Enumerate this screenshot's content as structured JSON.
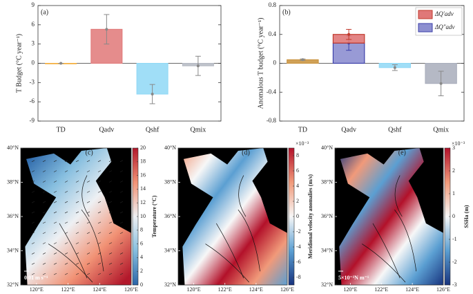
{
  "chart_data": [
    {
      "type": "bar",
      "panel": "(a)",
      "ylabel": "T Budget (°C year⁻¹)",
      "categories": [
        "TD",
        "Qadv",
        "Qshf",
        "Qmix"
      ],
      "values": [
        0,
        5.3,
        -4.8,
        -0.4
      ],
      "errors": [
        0,
        2.3,
        1.5,
        1.5
      ],
      "colors": [
        "#f5b041",
        "#e07878",
        "#8fd8f6",
        "#b4b8c2"
      ],
      "ylim": [
        -9,
        9
      ],
      "yticks": [
        -9,
        -6,
        -3,
        0,
        3,
        6,
        9
      ]
    },
    {
      "type": "bar",
      "panel": "(b)",
      "ylabel": "Anomalous T budget (°C year⁻¹)",
      "categories": [
        "TD",
        "Qadv",
        "Qshf",
        "Qmix"
      ],
      "values": [
        0.05,
        null,
        -0.06,
        -0.28
      ],
      "errors": [
        0.01,
        null,
        0.04,
        0.17
      ],
      "colors": [
        "#c8913a",
        null,
        "#8fd8f6",
        "#a8adbb"
      ],
      "series": [
        {
          "name": "ΔQ″adv",
          "color": "#8d8fd0",
          "values": [
            null,
            0.28,
            null,
            null
          ],
          "errors": [
            null,
            0.1,
            null,
            null
          ]
        },
        {
          "name": "ΔQ′adv",
          "color": "#e07878",
          "values": [
            null,
            0.12,
            null,
            null
          ],
          "errors": [
            null,
            0.07,
            null,
            null
          ]
        }
      ],
      "ylim": [
        -0.8,
        0.8
      ],
      "yticks": [
        -0.8,
        -0.4,
        0,
        0.4,
        0.8
      ]
    },
    {
      "type": "map",
      "panel": "(c)",
      "scale_note": "0.01 m s⁻¹",
      "xlim": [
        119,
        126
      ],
      "ylim": [
        32,
        40
      ],
      "xticks": [
        {
          "value": 120,
          "label": "120°E"
        },
        {
          "value": 122,
          "label": "122°E"
        },
        {
          "value": 124,
          "label": "124°E"
        },
        {
          "value": 126,
          "label": "126°E"
        }
      ],
      "yticks": [
        {
          "value": 32,
          "label": "32°N"
        },
        {
          "value": 34,
          "label": "34°N"
        },
        {
          "value": 36,
          "label": "36°N"
        },
        {
          "value": 38,
          "label": "38°N"
        },
        {
          "value": 40,
          "label": "40°N"
        }
      ],
      "colorbar": {
        "label": "Temperature (°C)",
        "clim": [
          0,
          20
        ],
        "cticks": [
          0,
          2,
          4,
          6,
          8,
          10,
          12,
          14,
          16,
          18,
          20
        ],
        "colormap": [
          "#2a65a8",
          "#86bedf",
          "#eef0f3",
          "#f19275",
          "#b2182b"
        ]
      }
    },
    {
      "type": "map",
      "panel": "(d)",
      "xlim": [
        119,
        126
      ],
      "ylim": [
        32,
        40
      ],
      "xticks": [
        {
          "value": 120,
          "label": "120°E"
        },
        {
          "value": 122,
          "label": "122°E"
        },
        {
          "value": 124,
          "label": "124°E"
        },
        {
          "value": 126,
          "label": "126°E"
        }
      ],
      "yticks": [
        {
          "value": 32,
          "label": "32°N"
        },
        {
          "value": 34,
          "label": "34°N"
        },
        {
          "value": 36,
          "label": "36°N"
        },
        {
          "value": 38,
          "label": "38°N"
        },
        {
          "value": 40,
          "label": "40°N"
        }
      ],
      "colorbar": {
        "label": "Meridional velocity anomalies (m/s)",
        "exponent": "×10⁻³",
        "clim": [
          -9,
          9
        ],
        "cticks": [
          -8,
          -6,
          -4,
          -2,
          0,
          2,
          4,
          6,
          8
        ],
        "colormap": [
          "#17337e",
          "#5b9fd2",
          "#f7f7f7",
          "#f19a7a",
          "#b3112a"
        ]
      }
    },
    {
      "type": "map",
      "panel": "(e)",
      "scale_note": "5×10⁻³N m⁻¹",
      "xlim": [
        119,
        126
      ],
      "ylim": [
        32,
        40
      ],
      "xticks": [
        {
          "value": 120,
          "label": "120°E"
        },
        {
          "value": 122,
          "label": "122°E"
        },
        {
          "value": 124,
          "label": "124°E"
        },
        {
          "value": 126,
          "label": "126°E"
        }
      ],
      "yticks": [
        {
          "value": 32,
          "label": "32°N"
        },
        {
          "value": 34,
          "label": "34°N"
        },
        {
          "value": 36,
          "label": "36°N"
        },
        {
          "value": 38,
          "label": "38°N"
        },
        {
          "value": 40,
          "label": "40°N"
        }
      ],
      "colorbar": {
        "label": "SSHa (m)",
        "exponent": "×10⁻³",
        "clim": [
          -3,
          3
        ],
        "cticks": [
          -3,
          -2,
          -1,
          0,
          1,
          2,
          3
        ],
        "colormap": [
          "#17337e",
          "#5b9fd2",
          "#f7f7f7",
          "#f19a7a",
          "#b3112a"
        ]
      }
    }
  ]
}
